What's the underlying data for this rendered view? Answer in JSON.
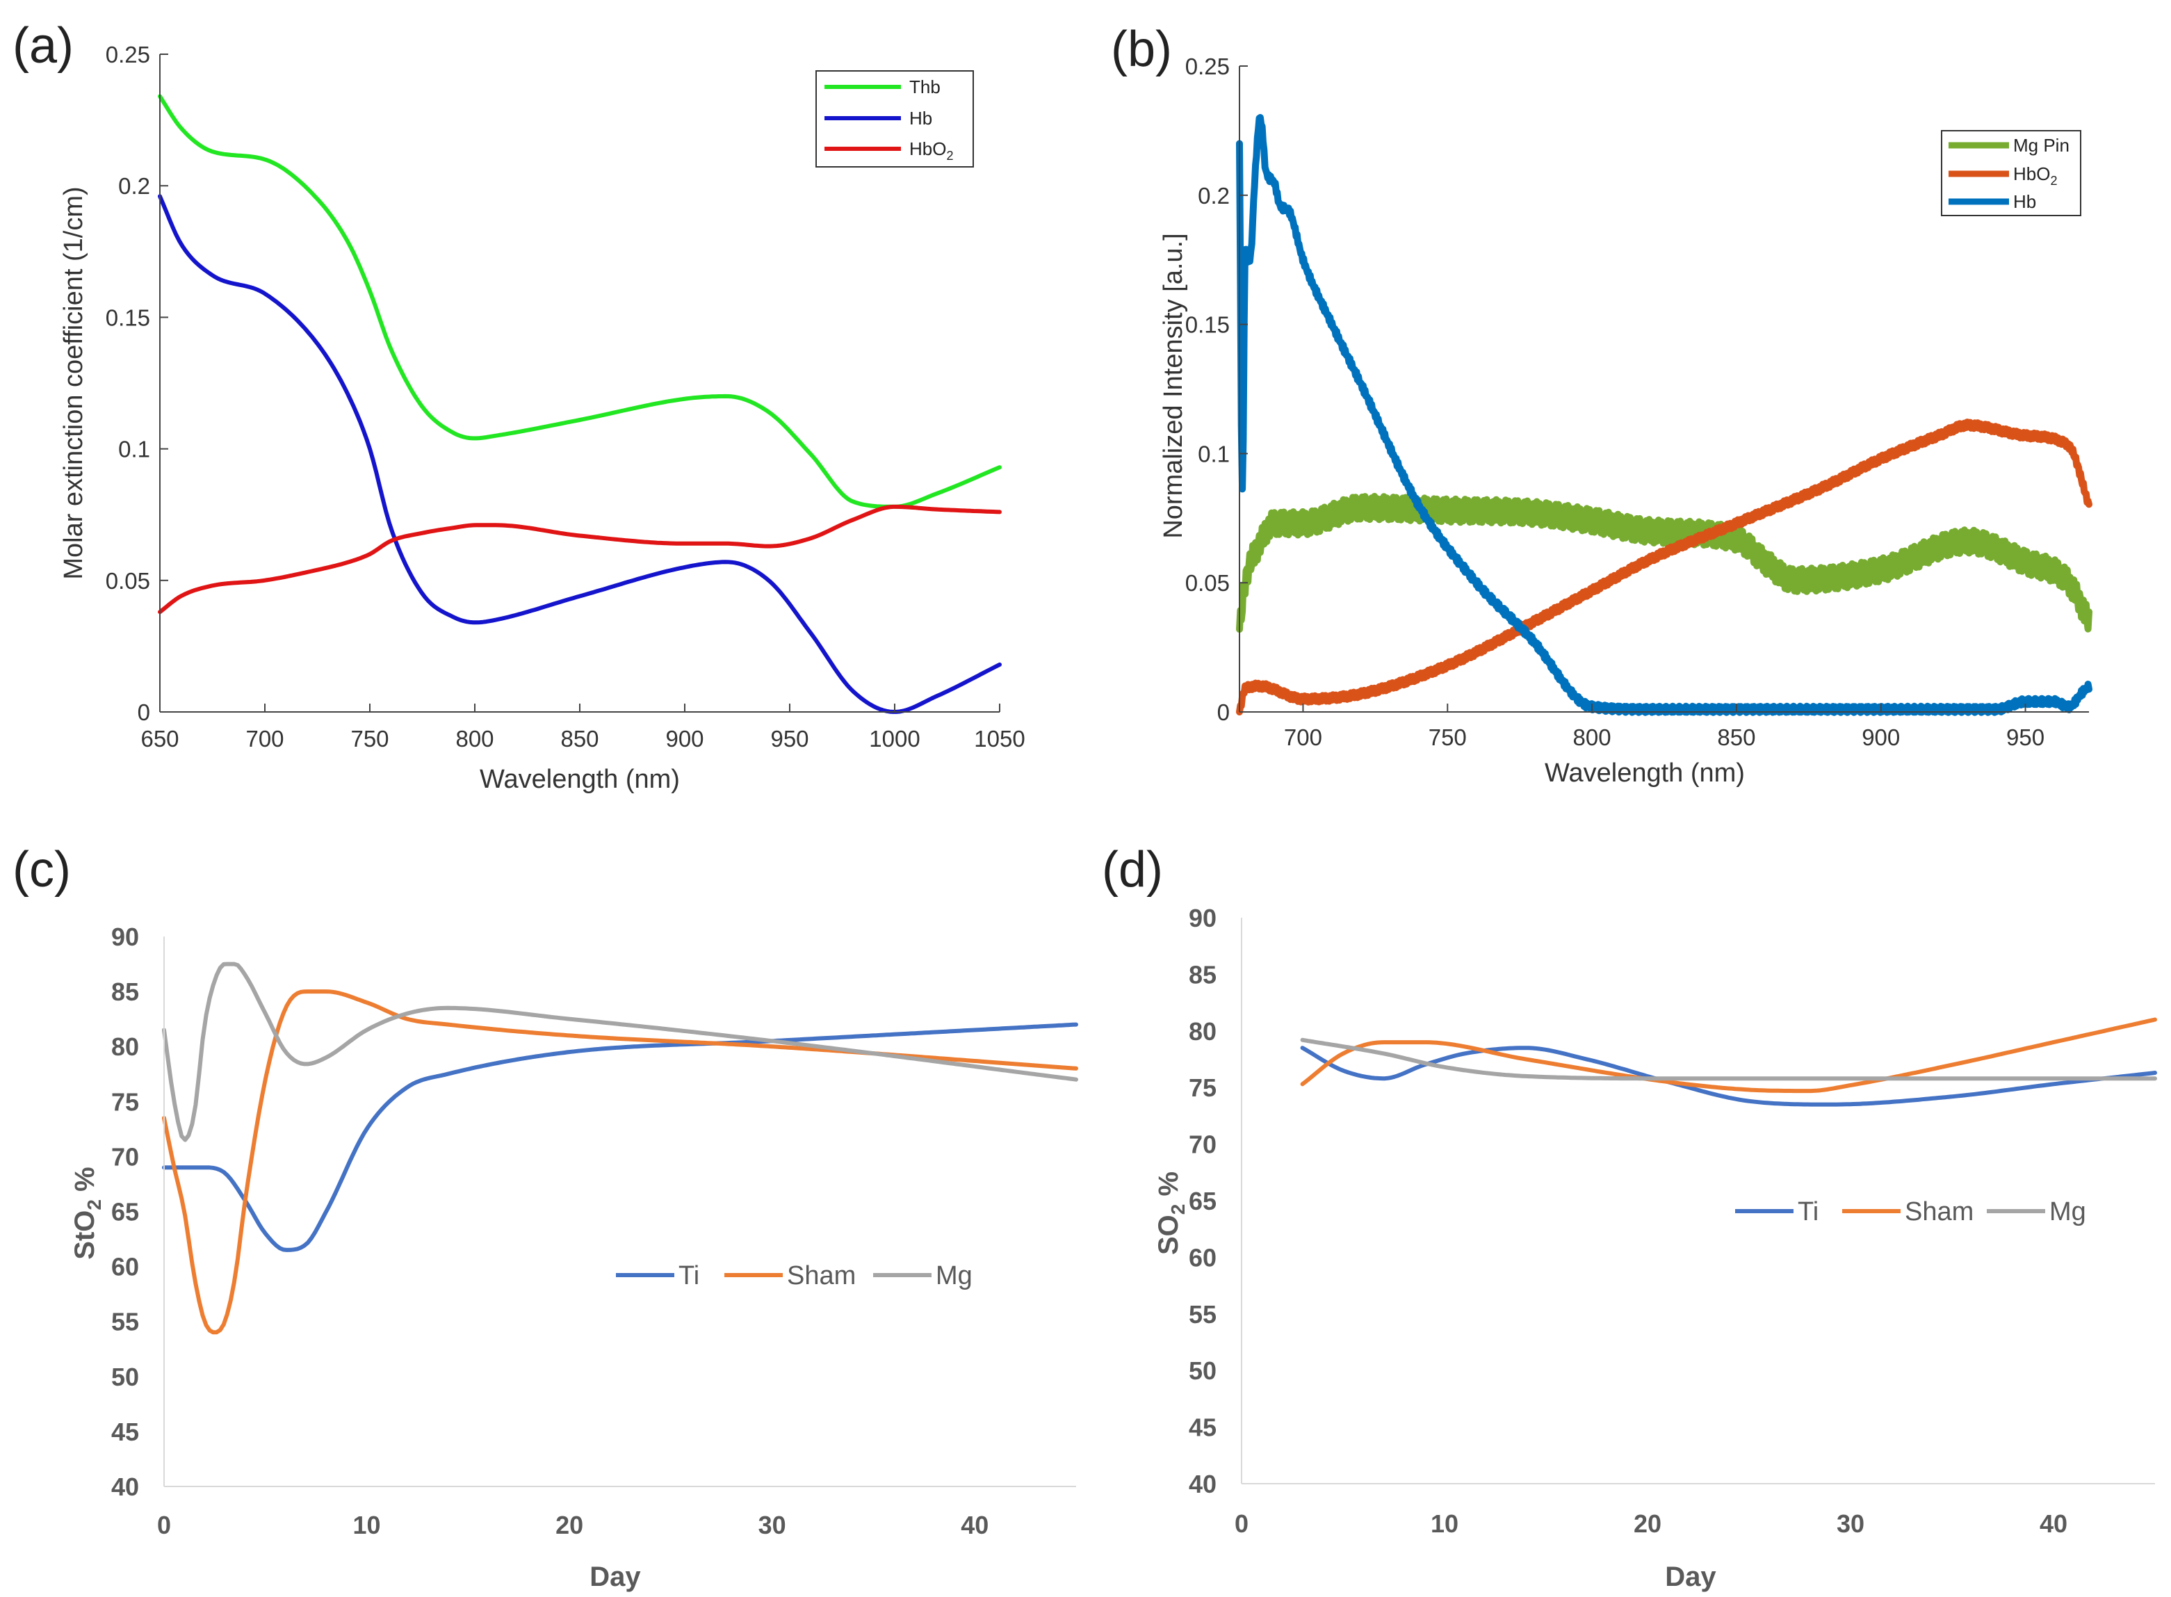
{
  "chart_data": [
    {
      "panel": "(a)",
      "type": "line",
      "xlabel": "Wavelength (nm)",
      "ylabel": "Molar extinction coefficient (1/cm)",
      "xlim": [
        650,
        1050
      ],
      "ylim": [
        0,
        0.25
      ],
      "xticks": [
        650,
        700,
        750,
        800,
        850,
        900,
        950,
        1000,
        1050
      ],
      "yticks": [
        0,
        0.05,
        0.1,
        0.15,
        0.2,
        0.25
      ],
      "legend_position": "top-right",
      "series": [
        {
          "name": "Thb",
          "color": "#22e622",
          "x": [
            650,
            660,
            675,
            700,
            725,
            740,
            750,
            760,
            775,
            790,
            800,
            810,
            850,
            900,
            920,
            940,
            960,
            980,
            1000,
            1020,
            1050
          ],
          "y": [
            0.234,
            0.222,
            0.213,
            0.21,
            0.195,
            0.178,
            0.16,
            0.138,
            0.116,
            0.106,
            0.104,
            0.105,
            0.111,
            0.119,
            0.12,
            0.114,
            0.098,
            0.08,
            0.078,
            0.083,
            0.093
          ]
        },
        {
          "name": "Hb",
          "color": "#1414cc",
          "x": [
            650,
            660,
            675,
            700,
            725,
            740,
            750,
            760,
            775,
            790,
            800,
            810,
            850,
            900,
            920,
            940,
            960,
            980,
            1000,
            1020,
            1050
          ],
          "y": [
            0.196,
            0.178,
            0.166,
            0.159,
            0.14,
            0.12,
            0.1,
            0.07,
            0.045,
            0.036,
            0.034,
            0.035,
            0.044,
            0.055,
            0.057,
            0.05,
            0.03,
            0.008,
            0.0,
            0.006,
            0.018
          ]
        },
        {
          "name": "HbO2",
          "color": "#e01414",
          "x": [
            650,
            660,
            675,
            700,
            725,
            740,
            750,
            760,
            775,
            790,
            800,
            810,
            850,
            900,
            920,
            940,
            960,
            980,
            1000,
            1020,
            1050
          ],
          "y": [
            0.038,
            0.044,
            0.048,
            0.05,
            0.054,
            0.057,
            0.06,
            0.065,
            0.068,
            0.07,
            0.071,
            0.071,
            0.067,
            0.064,
            0.064,
            0.063,
            0.066,
            0.073,
            0.078,
            0.077,
            0.076
          ]
        }
      ]
    },
    {
      "panel": "(b)",
      "type": "line",
      "xlabel": "Wavelength (nm)",
      "ylabel": "Normalized Intensity [a.u.]",
      "xlim": [
        678,
        972
      ],
      "ylim": [
        0,
        0.25
      ],
      "xticks": [
        700,
        750,
        800,
        850,
        900,
        950
      ],
      "yticks": [
        0,
        0.05,
        0.1,
        0.15,
        0.2,
        0.25
      ],
      "legend_position": "top-right",
      "series": [
        {
          "name": "Mg Pin",
          "color": "#77ac30",
          "x": [
            678,
            680,
            685,
            690,
            700,
            720,
            750,
            780,
            800,
            820,
            850,
            860,
            870,
            900,
            930,
            950,
            965,
            972
          ],
          "y": [
            0.032,
            0.05,
            0.065,
            0.073,
            0.073,
            0.079,
            0.078,
            0.077,
            0.074,
            0.07,
            0.067,
            0.058,
            0.051,
            0.055,
            0.066,
            0.058,
            0.05,
            0.035
          ]
        },
        {
          "name": "HbO2",
          "color": "#d95319",
          "x": [
            678,
            680,
            685,
            700,
            720,
            750,
            780,
            800,
            820,
            850,
            880,
            900,
            920,
            930,
            950,
            965,
            972
          ],
          "y": [
            0.0,
            0.009,
            0.01,
            0.005,
            0.007,
            0.018,
            0.035,
            0.047,
            0.059,
            0.073,
            0.087,
            0.098,
            0.107,
            0.111,
            0.107,
            0.103,
            0.08
          ]
        },
        {
          "name": "Hb",
          "color": "#0072bd",
          "x": [
            678,
            679,
            680,
            681,
            682,
            683,
            684,
            685,
            686,
            687,
            690,
            692,
            695,
            700,
            710,
            720,
            740,
            760,
            780,
            795,
            800,
            820,
            850,
            900,
            940,
            950,
            960,
            965,
            970,
            972
          ],
          "y": [
            0.22,
            0.085,
            0.18,
            0.175,
            0.178,
            0.2,
            0.218,
            0.23,
            0.224,
            0.21,
            0.205,
            0.196,
            0.194,
            0.175,
            0.15,
            0.127,
            0.08,
            0.05,
            0.027,
            0.005,
            0.002,
            0.001,
            0.001,
            0.001,
            0.001,
            0.004,
            0.004,
            0.002,
            0.008,
            0.01
          ]
        }
      ]
    },
    {
      "panel": "(c)",
      "type": "line",
      "xlabel": "Day",
      "ylabel": "StO2 %",
      "ylabel_main": "StO",
      "ylabel_sub": "2",
      "ylabel_rest": " %",
      "xlim": [
        0,
        45
      ],
      "ylim": [
        40,
        90
      ],
      "xticks": [
        0,
        10,
        20,
        30,
        40
      ],
      "yticks": [
        40,
        45,
        50,
        55,
        60,
        65,
        70,
        75,
        80,
        85,
        90
      ],
      "legend_position": "center-right",
      "series": [
        {
          "name": "Ti",
          "color": "#4472c4",
          "x": [
            0,
            1,
            2,
            3,
            4,
            5,
            6,
            7,
            8,
            10,
            12,
            14,
            20,
            30,
            45
          ],
          "y": [
            69,
            69,
            69,
            68.5,
            66,
            63,
            61.5,
            62,
            65,
            72.5,
            76.3,
            77.5,
            79.5,
            80.5,
            82
          ]
        },
        {
          "name": "Sham",
          "color": "#ed7d31",
          "x": [
            0,
            0.5,
            1,
            1.5,
            2,
            2.5,
            3,
            3.5,
            4,
            5,
            6,
            7,
            8,
            10,
            12,
            14,
            20,
            30,
            45
          ],
          "y": [
            73.5,
            69,
            65,
            59,
            55,
            54,
            55,
            59,
            66,
            77,
            83.5,
            85,
            85,
            84,
            82.5,
            82,
            81,
            80,
            78
          ]
        },
        {
          "name": "Mg",
          "color": "#a5a5a5",
          "x": [
            0,
            0.5,
            1,
            1.5,
            2,
            2.5,
            3,
            3.5,
            4,
            5,
            6,
            7,
            8,
            10,
            12,
            14,
            20,
            30,
            45
          ],
          "y": [
            81.5,
            75,
            71.5,
            74,
            82,
            86,
            87.5,
            87.5,
            86.5,
            83,
            79.5,
            78.4,
            79,
            81.5,
            83,
            83.5,
            82.5,
            80.5,
            77
          ]
        }
      ]
    },
    {
      "panel": "(d)",
      "type": "line",
      "xlabel": "Day",
      "ylabel": "SO2 %",
      "ylabel_main": "SO",
      "ylabel_sub": "2",
      "ylabel_rest": " %",
      "xlim": [
        0,
        45
      ],
      "ylim": [
        40,
        90
      ],
      "xticks": [
        0,
        10,
        20,
        30,
        40
      ],
      "yticks": [
        40,
        45,
        50,
        55,
        60,
        65,
        70,
        75,
        80,
        85,
        90
      ],
      "legend_position": "center-right",
      "series": [
        {
          "name": "Ti",
          "color": "#4472c4",
          "x": [
            3,
            5,
            7,
            9,
            11,
            14,
            17,
            21,
            25,
            29,
            35,
            40,
            45
          ],
          "y": [
            78.5,
            76.5,
            75.8,
            77,
            78,
            78.5,
            77.5,
            75.5,
            73.8,
            73.5,
            74.2,
            75.3,
            76.3
          ]
        },
        {
          "name": "Sham",
          "color": "#ed7d31",
          "x": [
            3,
            5,
            7,
            9,
            14,
            21,
            25,
            28,
            30,
            35,
            40,
            45
          ],
          "y": [
            75.3,
            78,
            79,
            79,
            77.5,
            75.5,
            74.8,
            74.7,
            75.2,
            77,
            79,
            81
          ]
        },
        {
          "name": "Mg",
          "color": "#a5a5a5",
          "x": [
            3,
            7,
            10,
            14,
            21,
            30,
            45
          ],
          "y": [
            79.2,
            78,
            76.8,
            76,
            75.8,
            75.8,
            75.8
          ]
        }
      ]
    }
  ],
  "panels": {
    "a": {
      "label": "(a)",
      "legend": [
        {
          "text": "Thb"
        },
        {
          "text": "Hb"
        },
        {
          "main": "HbO",
          "sub": "2"
        }
      ]
    },
    "b": {
      "label": "(b)",
      "legend": [
        {
          "text": "Mg Pin"
        },
        {
          "main": "HbO",
          "sub": "2"
        },
        {
          "text": "Hb"
        }
      ]
    },
    "c": {
      "label": "(c)"
    },
    "d": {
      "label": "(d)"
    }
  }
}
